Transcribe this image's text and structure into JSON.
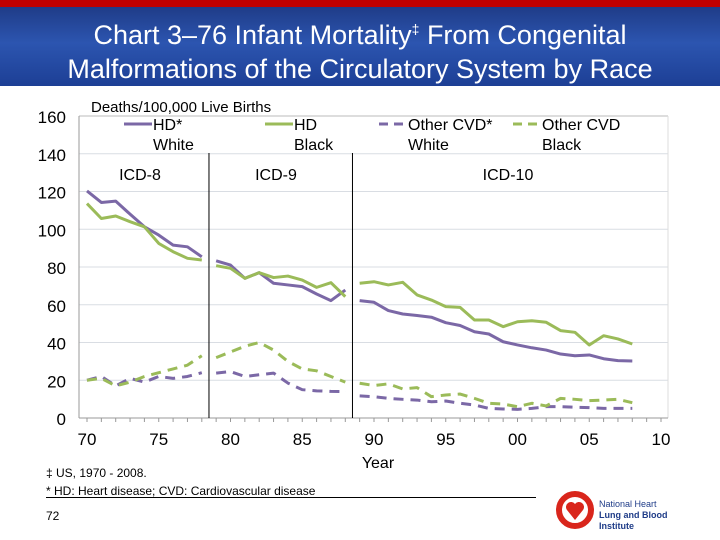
{
  "header": {
    "title_part1": "Chart 3–76 Infant Mortality",
    "title_mark": "‡",
    "title_part2": " From Congenital",
    "title_line2": "Malformations of the Circulatory System by Race"
  },
  "footnotes": {
    "source": "‡ US, 1970 - 2008.",
    "abbrev": "* HD: Heart disease; CVD: Cardiovascular disease"
  },
  "page_number": "72",
  "logo": {
    "line1": "National Heart",
    "line2": "Lung and Blood Institute"
  },
  "chart_data": {
    "type": "line",
    "title": "",
    "ylabel": "Deaths/100,000 Live Births",
    "xlabel": "Year",
    "ylim": [
      0,
      160
    ],
    "yticks": [
      0,
      20,
      40,
      60,
      80,
      100,
      120,
      140,
      160
    ],
    "xlim": [
      1970,
      2010
    ],
    "xtick_labels": [
      "70",
      "75",
      "80",
      "85",
      "90",
      "95",
      "00",
      "05",
      "10"
    ],
    "xtick_values": [
      1970,
      1975,
      1980,
      1985,
      1990,
      1995,
      2000,
      2005,
      2010
    ],
    "grid": true,
    "legend_placement": "top",
    "eras": [
      {
        "label": "ICD-8",
        "from": 1970,
        "to": 1978
      },
      {
        "label": "ICD-9",
        "from": 1979,
        "to": 1988
      },
      {
        "label": "ICD-10",
        "from": 1989,
        "to": 2008
      }
    ],
    "x": [
      1970,
      1971,
      1972,
      1973,
      1974,
      1975,
      1976,
      1977,
      1978,
      1979,
      1980,
      1981,
      1982,
      1983,
      1984,
      1985,
      1986,
      1987,
      1988,
      1989,
      1990,
      1991,
      1992,
      1993,
      1994,
      1995,
      1996,
      1997,
      1998,
      1999,
      2000,
      2001,
      2002,
      2003,
      2004,
      2005,
      2006,
      2007,
      2008
    ],
    "series": [
      {
        "name": "HD* White",
        "color": "#7b68a6",
        "dash": false,
        "values": [
          120.3,
          114.2,
          114.9,
          108,
          101.3,
          96.9,
          91.6,
          90.7,
          85.4,
          83.3,
          81,
          74,
          77,
          71.4,
          70.5,
          69.6,
          65.7,
          62.2,
          67.8,
          62.2,
          61.3,
          56.9,
          55.1,
          54.3,
          53.4,
          50.5,
          49,
          45.7,
          44.5,
          40.4,
          38.7,
          37.2,
          36,
          33.9,
          33,
          33.4,
          31.4,
          30.4,
          30.2
        ]
      },
      {
        "name": "HD Black",
        "color": "#9bbb59",
        "dash": false,
        "values": [
          113.6,
          105.7,
          107,
          104,
          101.3,
          92.5,
          88.1,
          84.6,
          83.7,
          80.7,
          79.3,
          74,
          77,
          74.4,
          75.2,
          73.1,
          69.2,
          71.7,
          64.3,
          71.4,
          72.2,
          70.5,
          71.9,
          65.2,
          62.5,
          59,
          58.6,
          51.9,
          51.9,
          48.4,
          51,
          51.5,
          50.7,
          46.3,
          45.4,
          38.7,
          43.6,
          41.9,
          39.2
        ]
      },
      {
        "name": "Other CVD* White",
        "color": "#7b68a6",
        "dash": true,
        "values": [
          20,
          22,
          17,
          21,
          19,
          22,
          21,
          22,
          24,
          23.8,
          24.6,
          22,
          22.9,
          23.8,
          18.5,
          15,
          14.4,
          14.1,
          14,
          11.7,
          11.3,
          10.4,
          9.9,
          9.5,
          8.6,
          9,
          7.8,
          6.9,
          5.1,
          4.8,
          4.6,
          5.1,
          6,
          6,
          5.7,
          5.5,
          5.1,
          5.1,
          5.1
        ]
      },
      {
        "name": "Other CVD Black",
        "color": "#9bbb59",
        "dash": true,
        "values": [
          20,
          21,
          17,
          19,
          22,
          24,
          26,
          28,
          33,
          32,
          35,
          38,
          40,
          36,
          30,
          26,
          25,
          22,
          19,
          18.4,
          17.2,
          18.1,
          15.4,
          16.1,
          11.3,
          12.2,
          12.7,
          10.4,
          7.8,
          7.4,
          6,
          7.8,
          6.4,
          10.4,
          9.9,
          9.2,
          9.5,
          9.9,
          8.1
        ]
      }
    ],
    "legend": [
      {
        "line1": "HD*",
        "line2": "White"
      },
      {
        "line1": "HD",
        "line2": "Black"
      },
      {
        "line1": "Other CVD*",
        "line2": "White"
      },
      {
        "line1": "Other CVD",
        "line2": "Black"
      }
    ]
  }
}
